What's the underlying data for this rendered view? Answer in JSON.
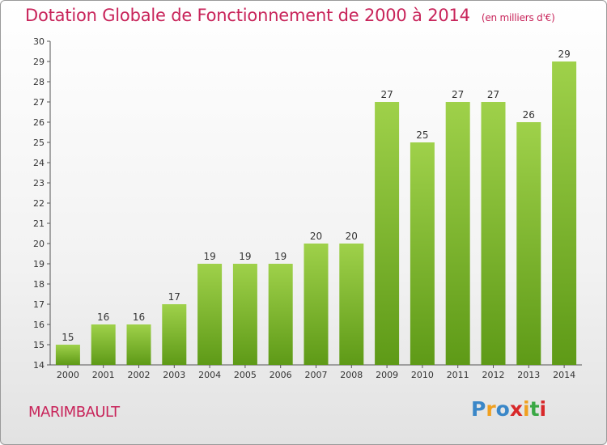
{
  "chart_data": {
    "type": "bar",
    "title": "Dotation Globale de Fonctionnement de 2000 à 2014",
    "subtitle": "(en milliers d'€)",
    "categories": [
      "2000",
      "2001",
      "2002",
      "2003",
      "2004",
      "2005",
      "2006",
      "2007",
      "2008",
      "2009",
      "2010",
      "2011",
      "2012",
      "2013",
      "2014"
    ],
    "values": [
      15,
      16,
      16,
      17,
      19,
      19,
      19,
      20,
      20,
      27,
      25,
      27,
      27,
      26,
      29
    ],
    "ylim": [
      14,
      30
    ],
    "yticks": [
      14,
      15,
      16,
      17,
      18,
      19,
      20,
      21,
      22,
      23,
      24,
      25,
      26,
      27,
      28,
      29,
      30
    ],
    "xlabel": "",
    "ylabel": "",
    "grid": false,
    "colors": {
      "bar_top": "#9fd14a",
      "bar_bottom": "#5e9a17",
      "title": "#c8245a"
    }
  },
  "footer": {
    "commune": "MARIMBAULT",
    "brand_letters": [
      "P",
      "r",
      "o",
      "x",
      "i",
      "t",
      "i"
    ],
    "brand_colors": [
      "#3a87c8",
      "#f0a020",
      "#3a87c8",
      "#d8282a",
      "#f0a020",
      "#3aa845",
      "#d8282a"
    ]
  }
}
